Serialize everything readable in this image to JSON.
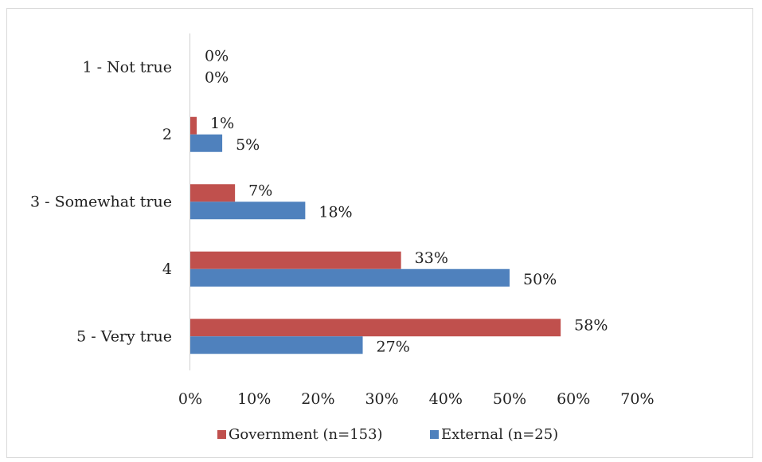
{
  "chart_data": {
    "type": "bar",
    "orientation": "horizontal",
    "categories": [
      "1 - Not true",
      "2",
      "3 - Somewhat true",
      "4",
      "5 - Very true"
    ],
    "series": [
      {
        "name": "Government (n=153)",
        "color": "#c0504d",
        "values": [
          0,
          1,
          7,
          33,
          58
        ],
        "labels": [
          "0%",
          "1%",
          "7%",
          "33%",
          "58%"
        ]
      },
      {
        "name": "External (n=25)",
        "color": "#4f81bd",
        "values": [
          0,
          5,
          18,
          50,
          27
        ],
        "labels": [
          "0%",
          "5%",
          "18%",
          "50%",
          "27%"
        ]
      }
    ],
    "xticks": [
      "0%",
      "10%",
      "20%",
      "30%",
      "40%",
      "50%",
      "60%",
      "70%"
    ],
    "xlim": [
      0,
      70
    ],
    "grid": false,
    "legend_position": "bottom"
  }
}
